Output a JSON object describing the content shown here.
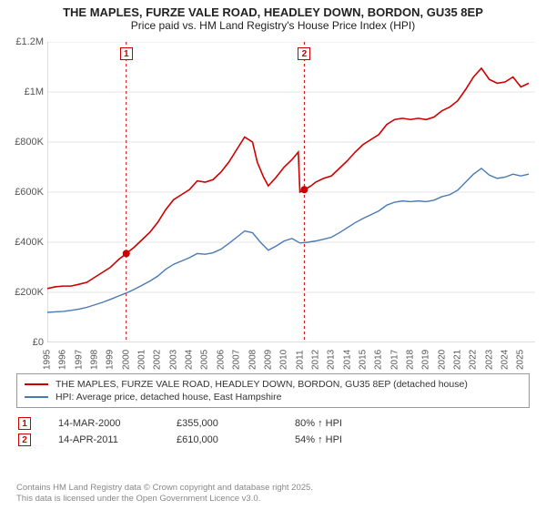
{
  "title_line1": "THE MAPLES, FURZE VALE ROAD, HEADLEY DOWN, BORDON, GU35 8EP",
  "title_line2": "Price paid vs. HM Land Registry's House Price Index (HPI)",
  "chart": {
    "type": "line",
    "background_color": "#ffffff",
    "grid_color": "#e6e6e6",
    "axis_color": "#bbbbbb",
    "xlim": [
      1995,
      2025.9
    ],
    "ylim": [
      0,
      1200000
    ],
    "yticks": [
      0,
      200000,
      400000,
      600000,
      800000,
      1000000,
      1200000
    ],
    "ytick_labels": [
      "£0",
      "£200K",
      "£400K",
      "£600K",
      "£800K",
      "£1M",
      "£1.2M"
    ],
    "xticks": [
      1995,
      1996,
      1997,
      1998,
      1999,
      2000,
      2001,
      2002,
      2003,
      2004,
      2005,
      2006,
      2007,
      2008,
      2009,
      2010,
      2011,
      2012,
      2013,
      2014,
      2015,
      2016,
      2017,
      2018,
      2019,
      2020,
      2021,
      2022,
      2023,
      2024,
      2025
    ],
    "xtick_labels": [
      "1995",
      "1996",
      "1997",
      "1998",
      "1999",
      "2000",
      "2001",
      "2002",
      "2003",
      "2004",
      "2005",
      "2006",
      "2007",
      "2008",
      "2009",
      "2010",
      "2011",
      "2012",
      "2013",
      "2014",
      "2015",
      "2016",
      "2017",
      "2018",
      "2019",
      "2020",
      "2021",
      "2022",
      "2023",
      "2024",
      "2025"
    ],
    "label_fontsize": 11,
    "series": [
      {
        "name": "property",
        "color": "#cc0000",
        "line_width": 1.6,
        "points": [
          [
            1995,
            215000
          ],
          [
            1995.5,
            222000
          ],
          [
            1996,
            225000
          ],
          [
            1996.5,
            225000
          ],
          [
            1997,
            232000
          ],
          [
            1997.5,
            240000
          ],
          [
            1998,
            260000
          ],
          [
            1998.5,
            280000
          ],
          [
            1999,
            300000
          ],
          [
            1999.5,
            330000
          ],
          [
            2000,
            355000
          ],
          [
            2000.5,
            380000
          ],
          [
            2001,
            410000
          ],
          [
            2001.5,
            440000
          ],
          [
            2002,
            480000
          ],
          [
            2002.5,
            530000
          ],
          [
            2003,
            570000
          ],
          [
            2003.5,
            590000
          ],
          [
            2004,
            610000
          ],
          [
            2004.5,
            645000
          ],
          [
            2005,
            640000
          ],
          [
            2005.5,
            650000
          ],
          [
            2006,
            680000
          ],
          [
            2006.5,
            720000
          ],
          [
            2007,
            770000
          ],
          [
            2007.5,
            820000
          ],
          [
            2008,
            800000
          ],
          [
            2008.3,
            720000
          ],
          [
            2008.7,
            660000
          ],
          [
            2009,
            625000
          ],
          [
            2009.5,
            660000
          ],
          [
            2010,
            700000
          ],
          [
            2010.5,
            730000
          ],
          [
            2010.9,
            760000
          ],
          [
            2011,
            600000
          ],
          [
            2011.3,
            610000
          ],
          [
            2011.7,
            625000
          ],
          [
            2012,
            640000
          ],
          [
            2012.5,
            655000
          ],
          [
            2013,
            665000
          ],
          [
            2013.5,
            695000
          ],
          [
            2014,
            725000
          ],
          [
            2014.5,
            760000
          ],
          [
            2015,
            790000
          ],
          [
            2015.5,
            810000
          ],
          [
            2016,
            830000
          ],
          [
            2016.5,
            870000
          ],
          [
            2017,
            890000
          ],
          [
            2017.5,
            895000
          ],
          [
            2018,
            890000
          ],
          [
            2018.5,
            895000
          ],
          [
            2019,
            890000
          ],
          [
            2019.5,
            900000
          ],
          [
            2020,
            925000
          ],
          [
            2020.5,
            940000
          ],
          [
            2021,
            965000
          ],
          [
            2021.5,
            1010000
          ],
          [
            2022,
            1060000
          ],
          [
            2022.5,
            1095000
          ],
          [
            2023,
            1050000
          ],
          [
            2023.5,
            1035000
          ],
          [
            2024,
            1040000
          ],
          [
            2024.5,
            1060000
          ],
          [
            2025,
            1020000
          ],
          [
            2025.5,
            1035000
          ]
        ]
      },
      {
        "name": "hpi",
        "color": "#4a7ab5",
        "line_width": 1.4,
        "points": [
          [
            1995,
            120000
          ],
          [
            1995.5,
            122000
          ],
          [
            1996,
            124000
          ],
          [
            1996.5,
            128000
          ],
          [
            1997,
            133000
          ],
          [
            1997.5,
            140000
          ],
          [
            1998,
            150000
          ],
          [
            1998.5,
            160000
          ],
          [
            1999,
            172000
          ],
          [
            1999.5,
            185000
          ],
          [
            2000,
            197000
          ],
          [
            2000.5,
            212000
          ],
          [
            2001,
            228000
          ],
          [
            2001.5,
            245000
          ],
          [
            2002,
            265000
          ],
          [
            2002.5,
            292000
          ],
          [
            2003,
            312000
          ],
          [
            2003.5,
            325000
          ],
          [
            2004,
            338000
          ],
          [
            2004.5,
            355000
          ],
          [
            2005,
            352000
          ],
          [
            2005.5,
            358000
          ],
          [
            2006,
            372000
          ],
          [
            2006.5,
            395000
          ],
          [
            2007,
            420000
          ],
          [
            2007.5,
            445000
          ],
          [
            2008,
            438000
          ],
          [
            2008.5,
            400000
          ],
          [
            2009,
            368000
          ],
          [
            2009.5,
            385000
          ],
          [
            2010,
            405000
          ],
          [
            2010.5,
            415000
          ],
          [
            2011,
            397000
          ],
          [
            2011.5,
            400000
          ],
          [
            2012,
            405000
          ],
          [
            2012.5,
            412000
          ],
          [
            2013,
            420000
          ],
          [
            2013.5,
            438000
          ],
          [
            2014,
            458000
          ],
          [
            2014.5,
            478000
          ],
          [
            2015,
            495000
          ],
          [
            2015.5,
            510000
          ],
          [
            2016,
            525000
          ],
          [
            2016.5,
            548000
          ],
          [
            2017,
            560000
          ],
          [
            2017.5,
            565000
          ],
          [
            2018,
            562000
          ],
          [
            2018.5,
            565000
          ],
          [
            2019,
            562000
          ],
          [
            2019.5,
            568000
          ],
          [
            2020,
            582000
          ],
          [
            2020.5,
            590000
          ],
          [
            2021,
            608000
          ],
          [
            2021.5,
            640000
          ],
          [
            2022,
            672000
          ],
          [
            2022.5,
            695000
          ],
          [
            2023,
            668000
          ],
          [
            2023.5,
            655000
          ],
          [
            2024,
            660000
          ],
          [
            2024.5,
            672000
          ],
          [
            2025,
            665000
          ],
          [
            2025.5,
            672000
          ]
        ]
      }
    ],
    "markers": [
      {
        "num": "1",
        "x": 2000,
        "y": 355000,
        "line_color": "#cc0000",
        "dot_color": "#cc0000"
      },
      {
        "num": "2",
        "x": 2011.28,
        "y": 610000,
        "line_color": "#cc0000",
        "dot_color": "#cc0000"
      }
    ]
  },
  "legend": {
    "items": [
      {
        "color": "#cc0000",
        "label": "THE MAPLES, FURZE VALE ROAD, HEADLEY DOWN, BORDON, GU35 8EP (detached house)"
      },
      {
        "color": "#4a7ab5",
        "label": "HPI: Average price, detached house, East Hampshire"
      }
    ]
  },
  "marker_rows": [
    {
      "num": "1",
      "date": "14-MAR-2000",
      "price": "£355,000",
      "vs_hpi": "80% ↑ HPI"
    },
    {
      "num": "2",
      "date": "14-APR-2011",
      "price": "£610,000",
      "vs_hpi": "54% ↑ HPI"
    }
  ],
  "footer_line1": "Contains HM Land Registry data © Crown copyright and database right 2025.",
  "footer_line2": "This data is licensed under the Open Government Licence v3.0."
}
